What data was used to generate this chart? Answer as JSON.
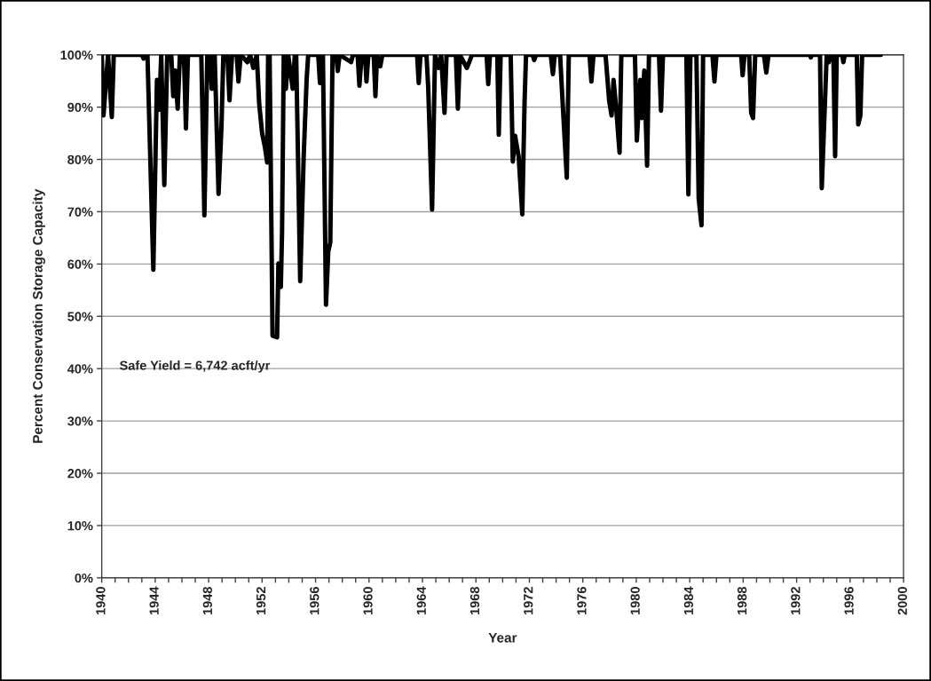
{
  "chart_data": {
    "type": "line",
    "xlabel": "Year",
    "ylabel": "Percent Conservation Storage Capacity",
    "annotations": [
      "Safe Yield = 6,742 acft/yr"
    ],
    "x": [
      1940.0,
      1940.13,
      1940.47,
      1940.75,
      1940.9,
      1943.0,
      1943.13,
      1943.25,
      1943.42,
      1943.86,
      1944.13,
      1944.3,
      1944.45,
      1944.68,
      1944.9,
      1945.2,
      1945.35,
      1945.5,
      1945.68,
      1945.85,
      1946.0,
      1946.15,
      1946.3,
      1946.45,
      1947.45,
      1947.68,
      1947.9,
      1948.1,
      1948.23,
      1948.45,
      1948.74,
      1948.96,
      1949.1,
      1949.4,
      1949.56,
      1949.75,
      1950.1,
      1950.23,
      1950.4,
      1950.9,
      1951.1,
      1951.34,
      1951.6,
      1951.78,
      1952.0,
      1952.22,
      1952.38,
      1952.45,
      1952.56,
      1952.78,
      1953.12,
      1953.22,
      1953.4,
      1953.49,
      1953.62,
      1953.78,
      1953.95,
      1954.29,
      1954.45,
      1954.55,
      1954.85,
      1955.11,
      1955.33,
      1955.45,
      1956.2,
      1956.33,
      1956.55,
      1956.78,
      1956.95,
      1957.1,
      1957.27,
      1957.55,
      1957.66,
      1957.8,
      1958.66,
      1958.8,
      1959.15,
      1959.28,
      1959.45,
      1959.7,
      1959.81,
      1959.95,
      1960.35,
      1960.48,
      1960.6,
      1960.84,
      1961.0,
      1963.6,
      1963.72,
      1963.85,
      1964.3,
      1964.43,
      1964.72,
      1964.94,
      1965.2,
      1965.4,
      1965.65,
      1965.8,
      1966.5,
      1966.65,
      1966.8,
      1967.32,
      1967.5,
      1967.7,
      1968.8,
      1968.92,
      1969.05,
      1969.6,
      1969.71,
      1969.85,
      1970.6,
      1970.76,
      1970.93,
      1971.2,
      1971.47,
      1971.64,
      1971.75,
      1972.25,
      1972.36,
      1972.5,
      1973.6,
      1973.76,
      1973.9,
      1974.3,
      1974.42,
      1974.8,
      1974.95,
      1976.5,
      1976.64,
      1976.8,
      1977.7,
      1977.97,
      1978.15,
      1978.3,
      1978.52,
      1978.75,
      1978.88,
      1979.9,
      1980.04,
      1980.3,
      1980.41,
      1980.6,
      1980.81,
      1980.95,
      1981.7,
      1981.85,
      1982.0,
      1983.75,
      1983.9,
      1984.05,
      1984.5,
      1984.67,
      1984.88,
      1985.0,
      1985.7,
      1985.85,
      1986.0,
      1987.85,
      1987.96,
      1988.1,
      1988.45,
      1988.6,
      1988.74,
      1988.9,
      1989.55,
      1989.73,
      1989.9,
      1993.0,
      1993.06,
      1993.15,
      1993.75,
      1993.88,
      1994.1,
      1994.25,
      1994.4,
      1994.55,
      1994.75,
      1994.88,
      1995.0,
      1995.4,
      1995.5,
      1995.6,
      1996.5,
      1996.61,
      1996.77,
      1996.9,
      1998.3
    ],
    "series": [
      {
        "color": "#000000",
        "values": [
          100,
          88.4,
          100,
          88.1,
          100,
          100,
          99.3,
          100,
          100,
          58.9,
          95.2,
          89.5,
          100,
          75.1,
          100,
          100,
          92.1,
          97,
          89.7,
          100,
          98.6,
          100,
          85.9,
          100,
          100,
          69.3,
          100,
          100,
          93.5,
          100,
          73.4,
          86.4,
          100,
          100,
          91.3,
          100,
          100,
          94.9,
          100,
          98.6,
          100,
          97.5,
          100,
          90.7,
          85.0,
          82.2,
          79.4,
          100,
          100,
          46.3,
          46.0,
          60.1,
          55.6,
          65.8,
          100,
          93.5,
          100,
          93.5,
          100,
          100,
          56.7,
          80.5,
          95.2,
          100,
          100,
          94.6,
          100,
          52.2,
          62.4,
          64.1,
          100,
          100,
          96.9,
          100,
          98.6,
          100,
          100,
          94.1,
          100,
          100,
          94.9,
          100,
          100,
          92.1,
          100,
          97.8,
          100,
          100,
          94.6,
          100,
          100,
          93.8,
          70.4,
          100,
          97.5,
          100,
          88.9,
          100,
          100,
          89.7,
          100,
          97.5,
          98.6,
          100,
          100,
          94.4,
          100,
          100,
          84.7,
          100,
          100,
          79.6,
          84.5,
          80.5,
          69.5,
          91.0,
          100,
          100,
          99.0,
          100,
          100,
          96.3,
          100,
          100,
          94.1,
          76.5,
          100,
          100,
          94.9,
          100,
          100,
          91.3,
          88.4,
          95.2,
          89.0,
          81.3,
          100,
          100,
          83.6,
          95.2,
          87.9,
          97,
          78.8,
          100,
          100,
          89.3,
          100,
          100,
          73.3,
          100,
          100,
          72.6,
          67.4,
          100,
          100,
          94.9,
          100,
          100,
          96.1,
          100,
          100,
          88.9,
          87.9,
          100,
          100,
          96.6,
          100,
          100,
          99.5,
          100,
          100,
          74.5,
          89.6,
          100,
          98.6,
          100,
          100,
          80.6,
          100,
          100,
          98.6,
          100,
          100,
          86.7,
          88.4,
          100,
          100
        ]
      }
    ],
    "xlim": [
      1940,
      2000
    ],
    "xticks": [
      1940,
      {
        "value": 1941,
        "label": null
      },
      {
        "value": 1942,
        "label": null
      },
      {
        "value": 1943,
        "label": null
      },
      1944,
      {
        "value": 1945,
        "label": null
      },
      {
        "value": 1946,
        "label": null
      },
      {
        "value": 1947,
        "label": null
      },
      1948,
      {
        "value": 1949,
        "label": null
      },
      {
        "value": 1950,
        "label": null
      },
      {
        "value": 1951,
        "label": null
      },
      1952,
      {
        "value": 1953,
        "label": null
      },
      {
        "value": 1954,
        "label": null
      },
      {
        "value": 1955,
        "label": null
      },
      1956,
      {
        "value": 1957,
        "label": null
      },
      {
        "value": 1958,
        "label": null
      },
      {
        "value": 1959,
        "label": null
      },
      1960,
      {
        "value": 1961,
        "label": null
      },
      {
        "value": 1962,
        "label": null
      },
      {
        "value": 1963,
        "label": null
      },
      1964,
      {
        "value": 1965,
        "label": null
      },
      {
        "value": 1966,
        "label": null
      },
      {
        "value": 1967,
        "label": null
      },
      1968,
      {
        "value": 1969,
        "label": null
      },
      {
        "value": 1970,
        "label": null
      },
      {
        "value": 1971,
        "label": null
      },
      1972,
      {
        "value": 1973,
        "label": null
      },
      {
        "value": 1974,
        "label": null
      },
      {
        "value": 1975,
        "label": null
      },
      1976,
      {
        "value": 1977,
        "label": null
      },
      {
        "value": 1978,
        "label": null
      },
      {
        "value": 1979,
        "label": null
      },
      1980,
      {
        "value": 1981,
        "label": null
      },
      {
        "value": 1982,
        "label": null
      },
      {
        "value": 1983,
        "label": null
      },
      1984,
      {
        "value": 1985,
        "label": null
      },
      {
        "value": 1986,
        "label": null
      },
      {
        "value": 1987,
        "label": null
      },
      1988,
      {
        "value": 1989,
        "label": null
      },
      {
        "value": 1990,
        "label": null
      },
      {
        "value": 1991,
        "label": null
      },
      1992,
      {
        "value": 1993,
        "label": null
      },
      {
        "value": 1994,
        "label": null
      },
      {
        "value": 1995,
        "label": null
      },
      1996,
      {
        "value": 1997,
        "label": null
      },
      {
        "value": 1998,
        "label": null
      },
      {
        "value": 1999,
        "label": null
      },
      2000
    ],
    "ylim": [
      0,
      100
    ],
    "yticks": [
      {
        "value": 0,
        "label": "0%"
      },
      {
        "value": 10,
        "label": "10%"
      },
      {
        "value": 20,
        "label": "20%"
      },
      {
        "value": 30,
        "label": "30%"
      },
      {
        "value": 40,
        "label": "40%"
      },
      {
        "value": 50,
        "label": "50%"
      },
      {
        "value": 60,
        "label": "60%"
      },
      {
        "value": 70,
        "label": "70%"
      },
      {
        "value": 80,
        "label": "80%"
      },
      {
        "value": 90,
        "label": "90%"
      },
      {
        "value": 100,
        "label": "100%"
      }
    ],
    "grid": "y"
  }
}
